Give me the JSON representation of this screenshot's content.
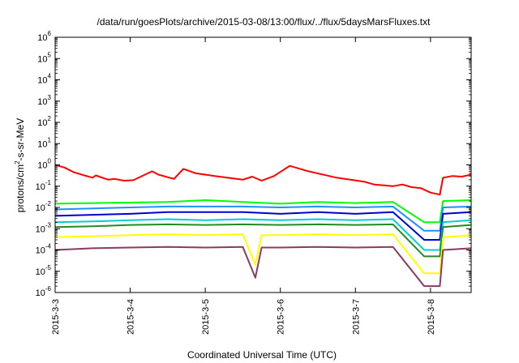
{
  "chart_data": {
    "type": "line",
    "title": "/data/run/goesPlots/archive/2015-03-08/13:00/flux/../flux/5daysMarsFluxes.txt",
    "xlabel": "Coordinated Universal Time (UTC)",
    "ylabel_parts": [
      "protons/cm",
      "2",
      "-s-sr-MeV"
    ],
    "y_scale": "log",
    "ylim": [
      1e-06,
      1000000.0
    ],
    "xlim": [
      "2015-03-03T00:00",
      "2015-03-08T13:00"
    ],
    "y_tick_labels": [
      {
        "base": "10",
        "exp": "-6"
      },
      {
        "base": "10",
        "exp": "-5"
      },
      {
        "base": "10",
        "exp": "-4"
      },
      {
        "base": "10",
        "exp": "-3"
      },
      {
        "base": "10",
        "exp": "-2"
      },
      {
        "base": "10",
        "exp": "-1"
      },
      {
        "base": "10",
        "exp": "0"
      },
      {
        "base": "10",
        "exp": "1"
      },
      {
        "base": "10",
        "exp": "2"
      },
      {
        "base": "10",
        "exp": "3"
      },
      {
        "base": "10",
        "exp": "4"
      },
      {
        "base": "10",
        "exp": "5"
      },
      {
        "base": "10",
        "exp": "6"
      }
    ],
    "x_tick_labels": [
      "2015-3-3",
      "2015-3-4",
      "2015-3-5",
      "2015-3-6",
      "2015-3-7",
      "2015-3-8"
    ],
    "x_ticks": [
      "2015-03-03T00:00",
      "2015-03-04T00:00",
      "2015-03-05T00:00",
      "2015-03-06T00:00",
      "2015-03-07T00:00",
      "2015-03-08T00:00"
    ],
    "grid": false,
    "legend": "none",
    "series": [
      {
        "color": "#ff0000",
        "points": [
          [
            "2015-03-03T00:00",
            1.0
          ],
          [
            "2015-03-03T03:00",
            0.75
          ],
          [
            "2015-03-03T06:00",
            0.45
          ],
          [
            "2015-03-03T09:00",
            0.33
          ],
          [
            "2015-03-03T12:00",
            0.25
          ],
          [
            "2015-03-03T13:00",
            0.32
          ],
          [
            "2015-03-03T17:00",
            0.2
          ],
          [
            "2015-03-03T19:00",
            0.22
          ],
          [
            "2015-03-03T22:00",
            0.18
          ],
          [
            "2015-03-04T01:00",
            0.19
          ],
          [
            "2015-03-04T07:00",
            0.5
          ],
          [
            "2015-03-04T09:00",
            0.35
          ],
          [
            "2015-03-04T14:00",
            0.22
          ],
          [
            "2015-03-04T17:00",
            0.65
          ],
          [
            "2015-03-04T21:00",
            0.4
          ],
          [
            "2015-03-05T03:00",
            0.3
          ],
          [
            "2015-03-05T12:00",
            0.2
          ],
          [
            "2015-03-05T15:00",
            0.28
          ],
          [
            "2015-03-05T18:00",
            0.18
          ],
          [
            "2015-03-05T22:00",
            0.3
          ],
          [
            "2015-03-06T03:00",
            0.9
          ],
          [
            "2015-03-06T09:00",
            0.5
          ],
          [
            "2015-03-06T18:00",
            0.25
          ],
          [
            "2015-03-07T03:00",
            0.16
          ],
          [
            "2015-03-07T06:00",
            0.12
          ],
          [
            "2015-03-07T12:00",
            0.1
          ],
          [
            "2015-03-07T15:00",
            0.12
          ],
          [
            "2015-03-07T18:00",
            0.09
          ],
          [
            "2015-03-07T21:00",
            0.08
          ],
          [
            "2015-03-08T00:00",
            0.05
          ],
          [
            "2015-03-08T03:00",
            0.04
          ],
          [
            "2015-03-08T04:00",
            0.25
          ],
          [
            "2015-03-08T07:00",
            0.3
          ],
          [
            "2015-03-08T10:00",
            0.28
          ],
          [
            "2015-03-08T13:00",
            0.35
          ]
        ]
      },
      {
        "color": "#00ff00",
        "points": [
          [
            "2015-03-03T00:00",
            0.015
          ],
          [
            "2015-03-03T12:00",
            0.016
          ],
          [
            "2015-03-04T00:00",
            0.017
          ],
          [
            "2015-03-04T12:00",
            0.018
          ],
          [
            "2015-03-05T00:00",
            0.022
          ],
          [
            "2015-03-05T12:00",
            0.018
          ],
          [
            "2015-03-06T00:00",
            0.015
          ],
          [
            "2015-03-06T12:00",
            0.018
          ],
          [
            "2015-03-07T00:00",
            0.016
          ],
          [
            "2015-03-07T12:00",
            0.018
          ],
          [
            "2015-03-07T22:00",
            0.002
          ],
          [
            "2015-03-08T03:00",
            0.002
          ],
          [
            "2015-03-08T04:00",
            0.02
          ],
          [
            "2015-03-08T13:00",
            0.022
          ]
        ]
      },
      {
        "color": "#1e90ff",
        "points": [
          [
            "2015-03-03T00:00",
            0.008
          ],
          [
            "2015-03-03T12:00",
            0.009
          ],
          [
            "2015-03-04T00:00",
            0.01
          ],
          [
            "2015-03-04T12:00",
            0.011
          ],
          [
            "2015-03-05T00:00",
            0.011
          ],
          [
            "2015-03-05T12:00",
            0.011
          ],
          [
            "2015-03-06T00:00",
            0.01
          ],
          [
            "2015-03-06T12:00",
            0.011
          ],
          [
            "2015-03-07T00:00",
            0.01
          ],
          [
            "2015-03-07T12:00",
            0.011
          ],
          [
            "2015-03-07T22:00",
            0.0008
          ],
          [
            "2015-03-08T03:00",
            0.0008
          ],
          [
            "2015-03-08T04:00",
            0.01
          ],
          [
            "2015-03-08T13:00",
            0.011
          ]
        ]
      },
      {
        "color": "#0000cd",
        "points": [
          [
            "2015-03-03T00:00",
            0.004
          ],
          [
            "2015-03-03T12:00",
            0.0045
          ],
          [
            "2015-03-04T00:00",
            0.005
          ],
          [
            "2015-03-04T12:00",
            0.006
          ],
          [
            "2015-03-05T00:00",
            0.006
          ],
          [
            "2015-03-05T12:00",
            0.006
          ],
          [
            "2015-03-06T00:00",
            0.005
          ],
          [
            "2015-03-06T12:00",
            0.006
          ],
          [
            "2015-03-07T00:00",
            0.005
          ],
          [
            "2015-03-07T12:00",
            0.006
          ],
          [
            "2015-03-07T22:00",
            0.0003
          ],
          [
            "2015-03-08T03:00",
            0.0003
          ],
          [
            "2015-03-08T04:00",
            0.005
          ],
          [
            "2015-03-08T13:00",
            0.006
          ]
        ]
      },
      {
        "color": "#00ced1",
        "points": [
          [
            "2015-03-03T00:00",
            0.002
          ],
          [
            "2015-03-03T12:00",
            0.0022
          ],
          [
            "2015-03-04T00:00",
            0.0025
          ],
          [
            "2015-03-04T12:00",
            0.0028
          ],
          [
            "2015-03-05T00:00",
            0.0025
          ],
          [
            "2015-03-05T12:00",
            0.0028
          ],
          [
            "2015-03-06T00:00",
            0.0025
          ],
          [
            "2015-03-06T12:00",
            0.0028
          ],
          [
            "2015-03-07T00:00",
            0.0025
          ],
          [
            "2015-03-07T12:00",
            0.0028
          ],
          [
            "2015-03-07T22:00",
            0.0001
          ],
          [
            "2015-03-08T03:00",
            0.0001
          ],
          [
            "2015-03-08T04:00",
            0.002
          ],
          [
            "2015-03-08T13:00",
            0.0025
          ]
        ]
      },
      {
        "color": "#228b22",
        "points": [
          [
            "2015-03-03T00:00",
            0.0012
          ],
          [
            "2015-03-03T12:00",
            0.0013
          ],
          [
            "2015-03-04T00:00",
            0.0015
          ],
          [
            "2015-03-04T12:00",
            0.0016
          ],
          [
            "2015-03-05T00:00",
            0.0015
          ],
          [
            "2015-03-05T12:00",
            0.0016
          ],
          [
            "2015-03-06T00:00",
            0.0015
          ],
          [
            "2015-03-06T12:00",
            0.0016
          ],
          [
            "2015-03-07T00:00",
            0.0015
          ],
          [
            "2015-03-07T12:00",
            0.0016
          ],
          [
            "2015-03-07T22:00",
            5e-05
          ],
          [
            "2015-03-08T03:00",
            5e-05
          ],
          [
            "2015-03-08T04:00",
            0.0012
          ],
          [
            "2015-03-08T13:00",
            0.0015
          ]
        ]
      },
      {
        "color": "#ffff00",
        "points": [
          [
            "2015-03-03T00:00",
            0.0004
          ],
          [
            "2015-03-03T12:00",
            0.00045
          ],
          [
            "2015-03-04T00:00",
            0.0005
          ],
          [
            "2015-03-04T12:00",
            0.00055
          ],
          [
            "2015-03-05T00:00",
            0.0005
          ],
          [
            "2015-03-05T12:00",
            0.00055
          ],
          [
            "2015-03-05T16:00",
            2e-05
          ],
          [
            "2015-03-05T18:00",
            0.0005
          ],
          [
            "2015-03-06T00:00",
            0.0005
          ],
          [
            "2015-03-06T12:00",
            0.00055
          ],
          [
            "2015-03-07T00:00",
            0.0005
          ],
          [
            "2015-03-07T12:00",
            0.00055
          ],
          [
            "2015-03-07T22:00",
            8e-06
          ],
          [
            "2015-03-08T03:00",
            8e-06
          ],
          [
            "2015-03-08T04:00",
            0.0004
          ],
          [
            "2015-03-08T13:00",
            0.0005
          ]
        ]
      },
      {
        "color": "#8b3a62",
        "points": [
          [
            "2015-03-03T00:00",
            0.0001
          ],
          [
            "2015-03-03T12:00",
            0.00012
          ],
          [
            "2015-03-04T00:00",
            0.00013
          ],
          [
            "2015-03-04T12:00",
            0.00014
          ],
          [
            "2015-03-05T00:00",
            0.00013
          ],
          [
            "2015-03-05T12:00",
            0.00014
          ],
          [
            "2015-03-05T16:00",
            5e-06
          ],
          [
            "2015-03-05T18:00",
            0.00013
          ],
          [
            "2015-03-06T00:00",
            0.00013
          ],
          [
            "2015-03-06T12:00",
            0.00014
          ],
          [
            "2015-03-07T00:00",
            0.00013
          ],
          [
            "2015-03-07T12:00",
            0.00014
          ],
          [
            "2015-03-07T22:00",
            2e-06
          ],
          [
            "2015-03-08T03:00",
            2e-06
          ],
          [
            "2015-03-08T04:00",
            0.0001
          ],
          [
            "2015-03-08T13:00",
            0.00012
          ]
        ]
      }
    ]
  }
}
